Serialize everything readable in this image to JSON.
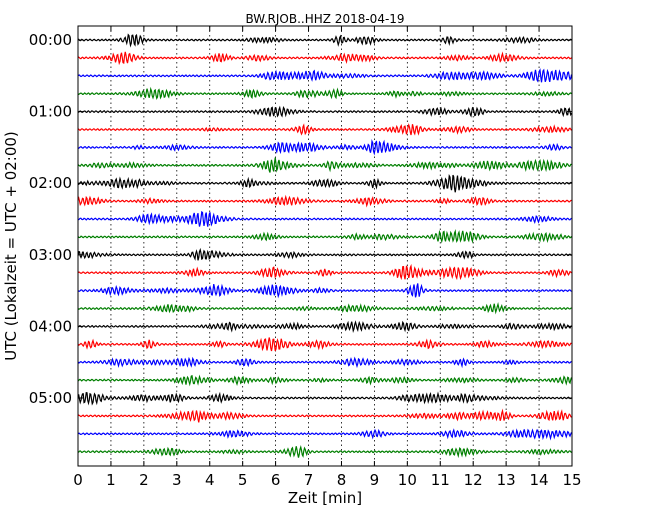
{
  "chart_data": {
    "type": "line",
    "subtype": "dayplot-seismogram",
    "title": "BW.RJOB..HHZ 2018-04-19",
    "xlabel": "Zeit  [min]",
    "ylabel": "UTC (Lokalzeit = UTC + 02:00)",
    "xlim": [
      0,
      15
    ],
    "x_ticks": [
      "0",
      "1",
      "2",
      "3",
      "4",
      "5",
      "6",
      "7",
      "8",
      "9",
      "10",
      "11",
      "12",
      "13",
      "14",
      "15"
    ],
    "y_tick_labels": [
      "00:00",
      "01:00",
      "02:00",
      "03:00",
      "04:00",
      "05:00"
    ],
    "rows_per_hour": 4,
    "minutes_per_row": 15,
    "row_count": 24,
    "row_colors": [
      "#000000",
      "#ff0000",
      "#0000ff",
      "#007f00"
    ],
    "grid": "vertical dotted at each minute"
  }
}
